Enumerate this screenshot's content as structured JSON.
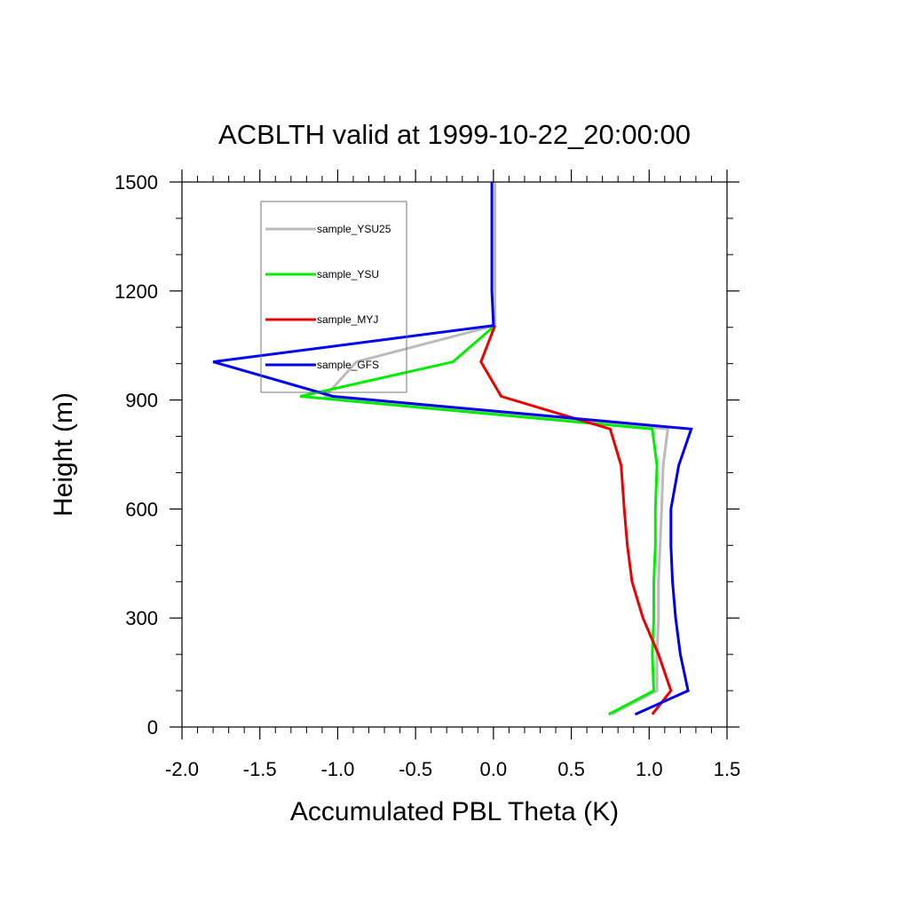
{
  "chart_data": {
    "type": "line",
    "title": "ACBLTH valid at 1999-10-22_20:00:00",
    "xlabel": "Accumulated PBL Theta (K)",
    "ylabel": "Height (m)",
    "xlim": [
      -2.0,
      1.5
    ],
    "ylim": [
      0,
      1500
    ],
    "xticks": [
      "-2.0",
      "-1.5",
      "-1.0",
      "-0.5",
      "0.0",
      "0.5",
      "1.0",
      "1.5"
    ],
    "yticks": [
      "0",
      "300",
      "600",
      "900",
      "1200",
      "1500"
    ],
    "legend_position": "upper-left",
    "grid": false,
    "series": [
      {
        "name": "sample_YSU25",
        "color": "#bbbbbb",
        "x": [
          0.76,
          1.05,
          1.05,
          1.06,
          1.06,
          1.07,
          1.08,
          1.09,
          1.12,
          -1.08,
          -0.88,
          0.01,
          0.01,
          0.01,
          0.01
        ],
        "y": [
          35,
          100,
          200,
          300,
          400,
          500,
          600,
          720,
          820,
          910,
          1005,
          1105,
          1200,
          1350,
          1500
        ]
      },
      {
        "name": "sample_YSU",
        "color": "#00ee00",
        "x": [
          0.74,
          1.03,
          1.02,
          1.03,
          1.03,
          1.04,
          1.04,
          1.05,
          1.02,
          -1.24,
          -0.26,
          0.01
        ],
        "y": [
          35,
          100,
          200,
          300,
          400,
          500,
          600,
          720,
          820,
          910,
          1005,
          1105
        ]
      },
      {
        "name": "sample_MYJ",
        "color": "#ee0000",
        "x": [
          1.02,
          1.14,
          1.06,
          0.96,
          0.89,
          0.86,
          0.84,
          0.82,
          0.75,
          0.05,
          -0.08,
          0.01
        ],
        "y": [
          35,
          100,
          200,
          300,
          400,
          500,
          600,
          720,
          820,
          910,
          1005,
          1105
        ]
      },
      {
        "name": "sample_GFS",
        "color": "#0000ee",
        "x": [
          0.91,
          1.25,
          1.2,
          1.17,
          1.15,
          1.14,
          1.14,
          1.19,
          1.27,
          -1.03,
          -1.8,
          0.0,
          -0.01,
          -0.01,
          -0.01
        ],
        "y": [
          35,
          100,
          200,
          300,
          400,
          500,
          600,
          720,
          820,
          910,
          1005,
          1105,
          1200,
          1350,
          1500
        ]
      }
    ]
  }
}
